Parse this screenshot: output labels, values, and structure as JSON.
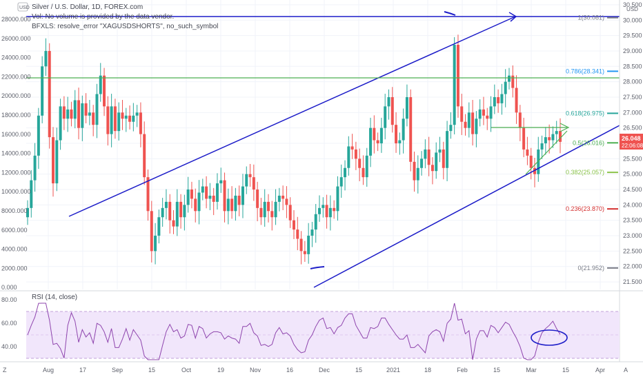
{
  "header": {
    "title": "Silver / U.S. Dollar, 1D, FOREX.com",
    "vol_note": "Vol: No volume is provided by the data vendor.",
    "bfxls_note": "BFXLS: resolve_error \"XAGUSDSHORTS\", no_such_symbol"
  },
  "left_axis": {
    "currency": "USD",
    "ticks": [
      "28000.000",
      "26000.000",
      "24000.000",
      "22000.000",
      "20000.000",
      "18000.000",
      "16000.000",
      "14000.000",
      "12000.000",
      "10000.000",
      "8000.000",
      "6000.000",
      "4000.000",
      "2000.000",
      "0.000"
    ]
  },
  "right_axis": {
    "currency": "USD",
    "ticks": [
      "30.500",
      "30.000",
      "29.500",
      "29.000",
      "28.500",
      "28.000",
      "27.500",
      "27.000",
      "26.500",
      "26.000",
      "25.500",
      "25.000",
      "24.500",
      "24.000",
      "23.500",
      "23.000",
      "22.500",
      "22.000",
      "21.500"
    ],
    "price_badge": "26.048",
    "countdown_badge": "22:06:08"
  },
  "time_axis": {
    "labels": [
      "Aug",
      "17",
      "Sep",
      "15",
      "Oct",
      "19",
      "Nov",
      "16",
      "Dec",
      "15",
      "2021",
      "18",
      "Feb",
      "15",
      "Mar",
      "15",
      "Apr"
    ]
  },
  "fib_levels": [
    {
      "label": "1(30.081)",
      "price": 30.081,
      "color": "#787b86"
    },
    {
      "label": "0.786(28.341)",
      "price": 28.341,
      "color": "#2196f3"
    },
    {
      "label": "0.618(26.975)",
      "price": 26.975,
      "color": "#26a69a"
    },
    {
      "label": "0.5(26.016)",
      "price": 26.016,
      "color": "#4caf50"
    },
    {
      "label": "0.382(25.057)",
      "price": 25.057,
      "color": "#8bc34a"
    },
    {
      "label": "0.236(23.870)",
      "price": 23.87,
      "color": "#d32f2f"
    },
    {
      "label": "0(21.952)",
      "price": 21.952,
      "color": "#787b86"
    }
  ],
  "rsi": {
    "label": "RSI (14, close)",
    "ticks": [
      "80.00",
      "60.00",
      "40.00"
    ],
    "upper_band": 70,
    "lower_band": 30,
    "color": "#8e44ad"
  },
  "colors": {
    "up": "#26a69a",
    "down": "#ef5350",
    "trendline": "#1c1cc8",
    "horizontal": "#4caf50",
    "rsi_bg": "#f1e6fb"
  },
  "chart_data": {
    "type": "candlestick",
    "title": "Silver / U.S. Dollar, 1D, FOREX.com",
    "y_unit": "USD",
    "ylim": [
      21.3,
      30.7
    ],
    "grid": true,
    "daily_close_path": [
      23.9,
      24.8,
      25.6,
      26.9,
      28.5,
      29.0,
      26.2,
      24.7,
      26.1,
      27.2,
      26.8,
      27.1,
      26.8,
      27.4,
      26.5,
      27.3,
      26.9,
      27.0,
      26.6,
      27.6,
      28.2,
      27.2,
      26.3,
      27.2,
      26.4,
      27.0,
      26.8,
      26.9,
      26.7,
      26.9,
      27.0,
      26.3,
      24.9,
      23.8,
      22.5,
      23.0,
      23.6,
      23.9,
      24.1,
      23.5,
      23.3,
      24.1,
      23.6,
      24.0,
      24.5,
      24.2,
      23.8,
      24.4,
      24.6,
      24.2,
      24.3,
      24.1,
      24.7,
      24.8,
      23.8,
      24.2,
      23.8,
      24.3,
      24.0,
      24.6,
      25.0,
      24.9,
      24.5,
      23.9,
      23.6,
      24.1,
      23.8,
      23.6,
      24.1,
      24.3,
      24.2,
      24.0,
      23.5,
      23.2,
      22.9,
      22.5,
      22.4,
      23.0,
      23.2,
      23.7,
      23.9,
      24.0,
      23.6,
      23.9,
      23.8,
      24.6,
      24.9,
      25.2,
      25.9,
      25.8,
      25.5,
      25.2,
      24.9,
      25.6,
      26.5,
      26.1,
      26.0,
      26.5,
      27.2,
      27.5,
      26.6,
      26.0,
      26.1,
      26.8,
      27.5,
      25.4,
      24.8,
      25.2,
      25.5,
      25.8,
      25.3,
      25.1,
      25.7,
      25.8,
      25.2,
      26.4,
      26.6,
      29.2,
      27.2,
      26.7,
      26.5,
      27.0,
      26.3,
      26.8,
      27.1,
      26.9,
      26.8,
      27.2,
      27.5,
      27.3,
      27.6,
      28.0,
      28.2,
      27.8,
      27.0,
      26.5,
      25.8,
      25.6,
      25.2,
      25.0,
      25.8,
      26.0,
      26.2,
      26.1,
      26.3,
      26.4,
      26.048
    ],
    "fib_retracement": {
      "levels": [
        "1",
        "0.786",
        "0.618",
        "0.5",
        "0.382",
        "0.236",
        "0"
      ],
      "prices": [
        30.081,
        28.341,
        26.975,
        26.016,
        25.057,
        23.87,
        21.952
      ]
    },
    "last_price": 26.048
  }
}
